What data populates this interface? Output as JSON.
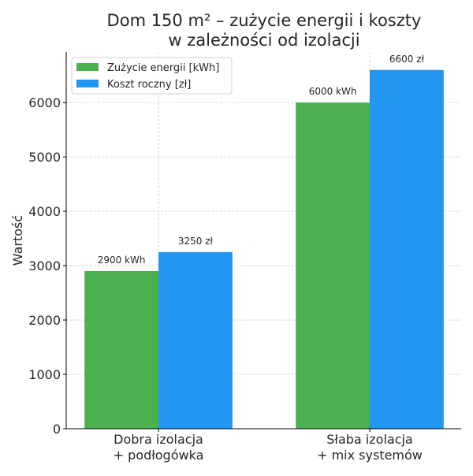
{
  "chart_data": {
    "type": "bar",
    "title": [
      "Dom 150 m² – zużycie energii i koszty",
      "w zależności od izolacji"
    ],
    "xlabel": "",
    "ylabel": "Wartość",
    "categories": [
      [
        "Dobra izolacja",
        "+ podłogówka"
      ],
      [
        "Słaba izolacja",
        "+ mix systemów"
      ]
    ],
    "series": [
      {
        "name": "Zużycie energii [kWh]",
        "values": [
          2900,
          6000
        ],
        "labels": [
          "2900 kWh",
          "6000 kWh"
        ],
        "color": "#4caf50"
      },
      {
        "name": "Koszt roczny [zł]",
        "values": [
          3250,
          6600
        ],
        "labels": [
          "3250 zł",
          "6600 zł"
        ],
        "color": "#2196f3"
      }
    ],
    "ylim": [
      0,
      6930
    ],
    "yticks": [
      0,
      1000,
      2000,
      3000,
      4000,
      5000,
      6000
    ],
    "grid": true,
    "legend": "top-left"
  }
}
